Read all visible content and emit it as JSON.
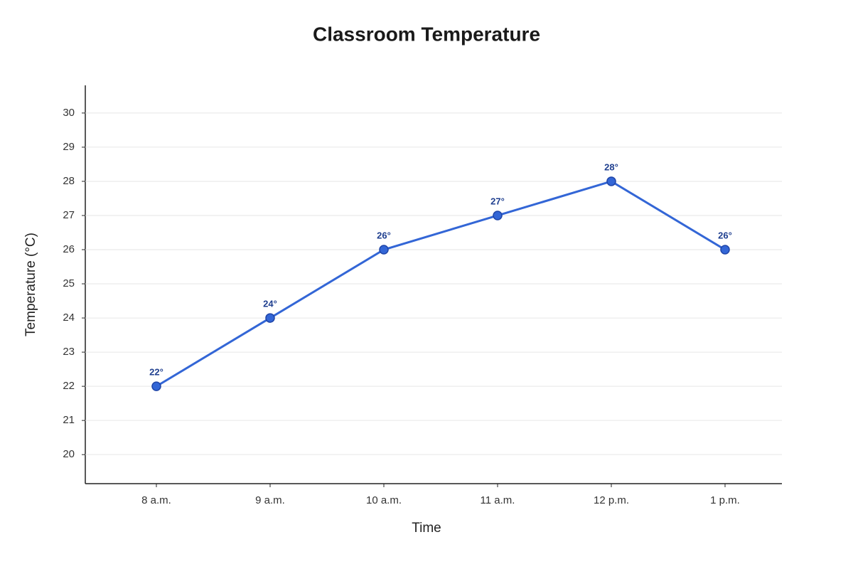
{
  "chart_data": {
    "type": "line",
    "title": "Classroom Temperature",
    "x_label": "Time",
    "y_label": "Temperature (°C)",
    "categories": [
      "8 a.m.",
      "9 a.m.",
      "10 a.m.",
      "11 a.m.",
      "12 p.m.",
      "1 p.m."
    ],
    "series": [
      {
        "name": "Temperature",
        "color": "#3366d6",
        "values": [
          22,
          24,
          26,
          27,
          28,
          26
        ],
        "value_labels": [
          "22°",
          "24°",
          "26°",
          "27°",
          "28°",
          "26°"
        ]
      }
    ],
    "ylim": [
      19.15,
      30.81
    ],
    "yticks": [
      20,
      21,
      22,
      23,
      24,
      25,
      26,
      27,
      28,
      29,
      30
    ],
    "grid": true
  }
}
